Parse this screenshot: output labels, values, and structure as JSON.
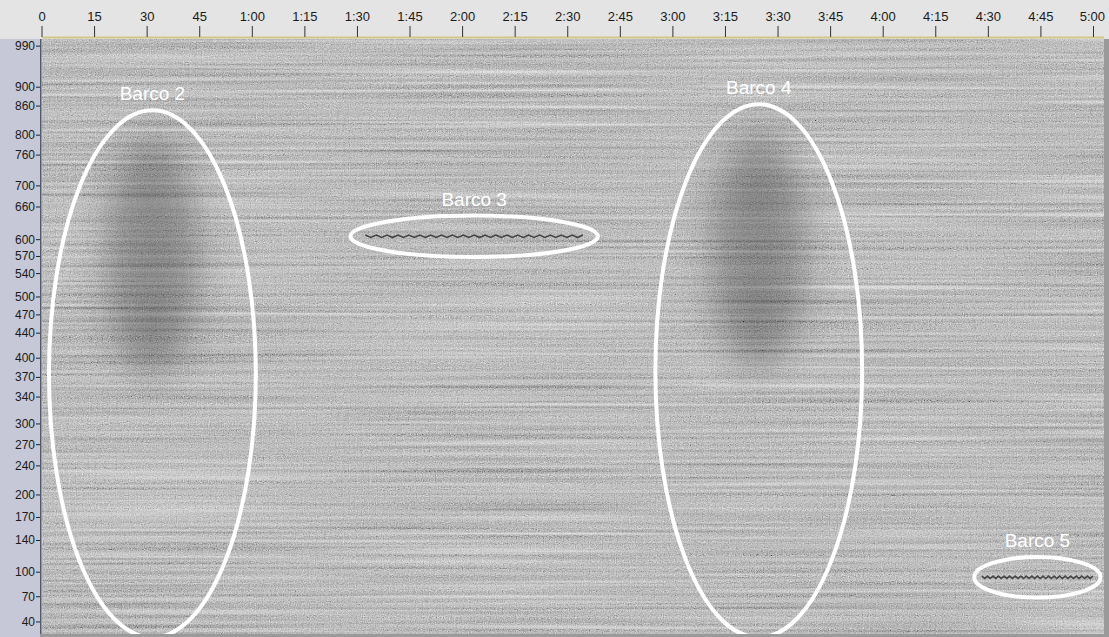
{
  "chart_data": {
    "type": "spectrogram",
    "xlim": [
      0,
      303
    ],
    "xticks": [
      0,
      15,
      30,
      45,
      {
        "value": 60,
        "label": "1:00"
      },
      {
        "value": 75,
        "label": "1:15"
      },
      {
        "value": 90,
        "label": "1:30"
      },
      {
        "value": 105,
        "label": "1:45"
      },
      {
        "value": 120,
        "label": "2:00"
      },
      {
        "value": 135,
        "label": "2:15"
      },
      {
        "value": 150,
        "label": "2:30"
      },
      {
        "value": 165,
        "label": "2:45"
      },
      {
        "value": 180,
        "label": "3:00"
      },
      {
        "value": 195,
        "label": "3:15"
      },
      {
        "value": 210,
        "label": "3:30"
      },
      {
        "value": 225,
        "label": "3:45"
      },
      {
        "value": 240,
        "label": "4:00"
      },
      {
        "value": 255,
        "label": "4:15"
      },
      {
        "value": 270,
        "label": "4:30"
      },
      {
        "value": 285,
        "label": "4:45"
      },
      {
        "value": 300,
        "label": "5:00"
      }
    ],
    "ylim": [
      26,
      1006
    ],
    "yticks": [
      990,
      900,
      860,
      800,
      760,
      700,
      660,
      600,
      570,
      540,
      500,
      470,
      440,
      400,
      370,
      340,
      300,
      270,
      240,
      200,
      170,
      140,
      100,
      70,
      40
    ],
    "annotations": [
      {
        "text": "Barco 2",
        "x": [
          2,
          61
        ],
        "y": [
          22,
          851
        ]
      },
      {
        "text": "Barco 3",
        "x": [
          88,
          158.6
        ],
        "y": [
          569,
          644
        ]
      },
      {
        "text": "Barco 4",
        "x": [
          175,
          234
        ],
        "y": [
          22,
          864
        ]
      },
      {
        "text": "Barco 5",
        "x": [
          266,
          302
        ],
        "y": [
          69,
          119
        ]
      }
    ]
  }
}
